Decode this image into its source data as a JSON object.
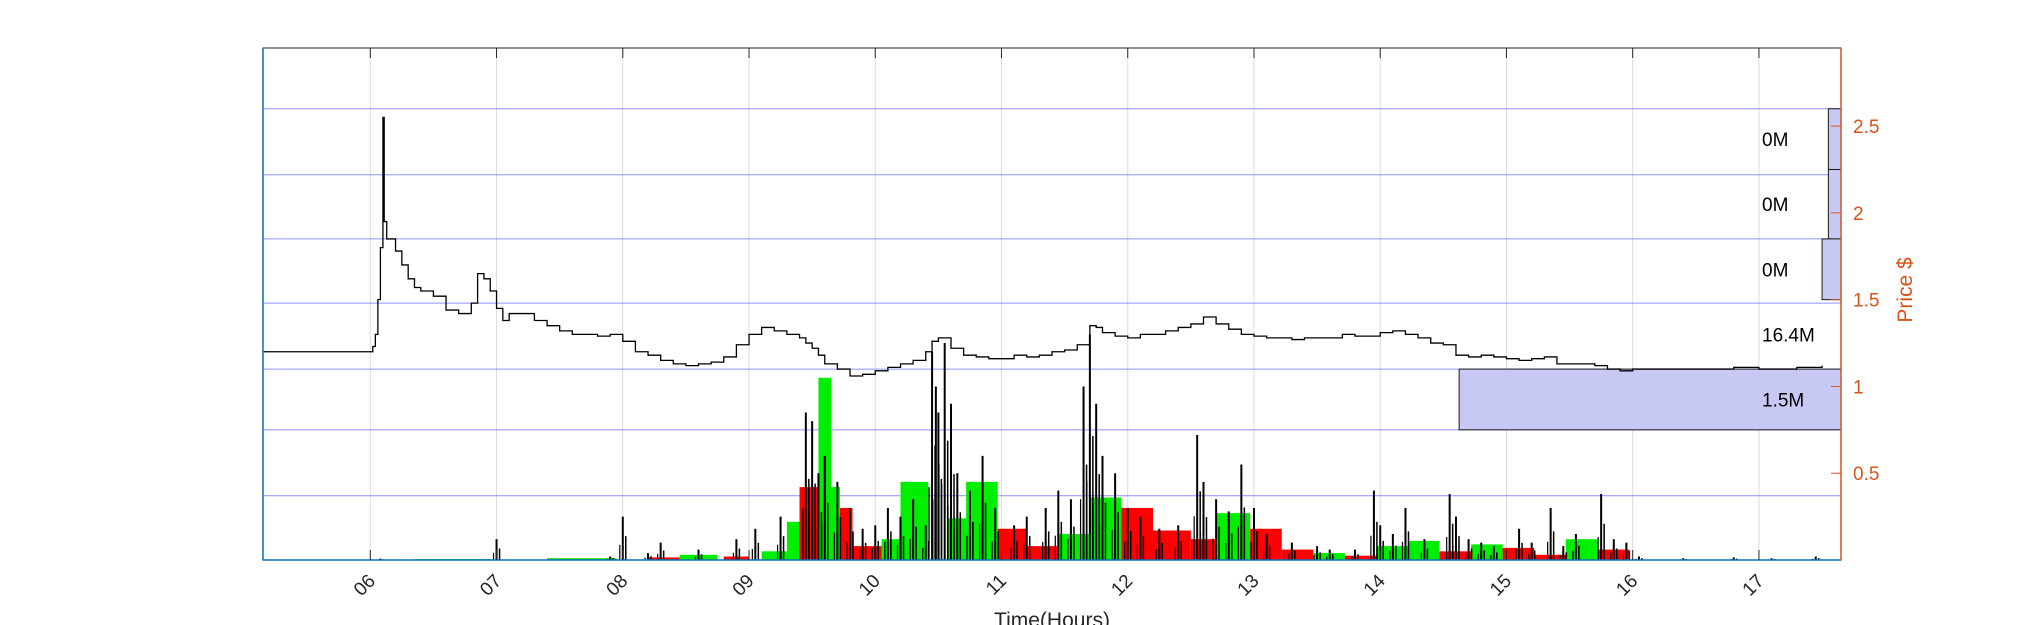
{
  "chart_data": {
    "type": "line",
    "xlabel": "Time(Hours)",
    "ylabel": "Price $",
    "x_ticks": [
      "06",
      "07",
      "08",
      "09",
      "10",
      "11",
      "12",
      "13",
      "14",
      "15",
      "16",
      "17"
    ],
    "y_ticks": [
      "0.5",
      "1",
      "1.5",
      "2",
      "2.5"
    ],
    "ylim": [
      0,
      2.95
    ],
    "xlim_hours": [
      5.15,
      17.65
    ],
    "grid": true,
    "series": [
      {
        "values": [
          [
            5.15,
            1.2
          ],
          [
            6.0,
            1.2
          ],
          [
            6.02,
            1.23
          ],
          [
            6.04,
            1.3
          ],
          [
            6.06,
            1.5
          ],
          [
            6.08,
            1.8
          ],
          [
            6.1,
            2.55
          ],
          [
            6.11,
            1.95
          ],
          [
            6.13,
            1.85
          ],
          [
            6.15,
            1.85
          ],
          [
            6.2,
            1.78
          ],
          [
            6.25,
            1.7
          ],
          [
            6.3,
            1.62
          ],
          [
            6.35,
            1.57
          ],
          [
            6.4,
            1.55
          ],
          [
            6.5,
            1.52
          ],
          [
            6.6,
            1.44
          ],
          [
            6.7,
            1.42
          ],
          [
            6.8,
            1.48
          ],
          [
            6.85,
            1.65
          ],
          [
            6.9,
            1.62
          ],
          [
            6.95,
            1.55
          ],
          [
            7.0,
            1.45
          ],
          [
            7.05,
            1.38
          ],
          [
            7.1,
            1.42
          ],
          [
            7.2,
            1.42
          ],
          [
            7.3,
            1.38
          ],
          [
            7.4,
            1.35
          ],
          [
            7.5,
            1.32
          ],
          [
            7.6,
            1.3
          ],
          [
            7.7,
            1.3
          ],
          [
            7.8,
            1.29
          ],
          [
            7.9,
            1.3
          ],
          [
            8.0,
            1.26
          ],
          [
            8.1,
            1.2
          ],
          [
            8.2,
            1.18
          ],
          [
            8.3,
            1.15
          ],
          [
            8.4,
            1.13
          ],
          [
            8.5,
            1.12
          ],
          [
            8.6,
            1.13
          ],
          [
            8.7,
            1.14
          ],
          [
            8.8,
            1.17
          ],
          [
            8.9,
            1.24
          ],
          [
            9.0,
            1.3
          ],
          [
            9.1,
            1.34
          ],
          [
            9.2,
            1.32
          ],
          [
            9.3,
            1.3
          ],
          [
            9.4,
            1.28
          ],
          [
            9.45,
            1.25
          ],
          [
            9.5,
            1.22
          ],
          [
            9.55,
            1.18
          ],
          [
            9.6,
            1.13
          ],
          [
            9.7,
            1.1
          ],
          [
            9.8,
            1.06
          ],
          [
            9.9,
            1.07
          ],
          [
            10.0,
            1.09
          ],
          [
            10.1,
            1.11
          ],
          [
            10.2,
            1.13
          ],
          [
            10.3,
            1.15
          ],
          [
            10.4,
            1.2
          ],
          [
            10.45,
            1.26
          ],
          [
            10.5,
            1.28
          ],
          [
            10.6,
            1.22
          ],
          [
            10.7,
            1.18
          ],
          [
            10.8,
            1.17
          ],
          [
            10.9,
            1.16
          ],
          [
            11.0,
            1.16
          ],
          [
            11.1,
            1.18
          ],
          [
            11.2,
            1.17
          ],
          [
            11.3,
            1.18
          ],
          [
            11.4,
            1.2
          ],
          [
            11.5,
            1.21
          ],
          [
            11.6,
            1.24
          ],
          [
            11.7,
            1.35
          ],
          [
            11.75,
            1.34
          ],
          [
            11.8,
            1.31
          ],
          [
            11.9,
            1.29
          ],
          [
            12.0,
            1.28
          ],
          [
            12.1,
            1.3
          ],
          [
            12.2,
            1.3
          ],
          [
            12.3,
            1.32
          ],
          [
            12.4,
            1.34
          ],
          [
            12.5,
            1.36
          ],
          [
            12.6,
            1.4
          ],
          [
            12.7,
            1.36
          ],
          [
            12.8,
            1.33
          ],
          [
            12.9,
            1.3
          ],
          [
            13.0,
            1.29
          ],
          [
            13.1,
            1.28
          ],
          [
            13.2,
            1.28
          ],
          [
            13.3,
            1.27
          ],
          [
            13.4,
            1.28
          ],
          [
            13.5,
            1.28
          ],
          [
            13.6,
            1.28
          ],
          [
            13.7,
            1.3
          ],
          [
            13.8,
            1.29
          ],
          [
            13.9,
            1.29
          ],
          [
            14.0,
            1.31
          ],
          [
            14.1,
            1.32
          ],
          [
            14.2,
            1.3
          ],
          [
            14.3,
            1.28
          ],
          [
            14.4,
            1.25
          ],
          [
            14.5,
            1.24
          ],
          [
            14.6,
            1.18
          ],
          [
            14.7,
            1.17
          ],
          [
            14.8,
            1.18
          ],
          [
            14.9,
            1.17
          ],
          [
            15.0,
            1.16
          ],
          [
            15.1,
            1.15
          ],
          [
            15.2,
            1.16
          ],
          [
            15.3,
            1.17
          ],
          [
            15.4,
            1.13
          ],
          [
            15.5,
            1.13
          ],
          [
            15.6,
            1.13
          ],
          [
            15.7,
            1.12
          ],
          [
            15.8,
            1.1
          ],
          [
            15.9,
            1.09
          ],
          [
            16.0,
            1.1
          ],
          [
            16.2,
            1.1
          ],
          [
            16.5,
            1.1
          ],
          [
            16.8,
            1.11
          ],
          [
            17.0,
            1.1
          ],
          [
            17.3,
            1.11
          ],
          [
            17.5,
            1.12
          ]
        ]
      }
    ],
    "volume_profile": [
      {
        "price_low": 2.25,
        "price_high": 2.6,
        "width": 0.008,
        "label": "0M"
      },
      {
        "price_low": 1.85,
        "price_high": 2.25,
        "width": 0.008,
        "label": "0M"
      },
      {
        "price_low": 1.5,
        "price_high": 1.85,
        "width": 0.012,
        "label": "0M"
      },
      {
        "price_low": 1.1,
        "price_high": 1.5,
        "width": 0.0,
        "label": "16.4M"
      },
      {
        "price_low": 0.75,
        "price_high": 1.1,
        "width": 0.242,
        "label": "1.5M"
      }
    ],
    "hourly_volume_bars": [
      {
        "x0": 6.35,
        "x1": 6.95,
        "price_top": 0.005,
        "color": "#00cc00"
      },
      {
        "x0": 7.4,
        "x1": 7.95,
        "price_top": 0.01,
        "color": "#00dd00"
      },
      {
        "x0": 8.2,
        "x1": 8.45,
        "price_top": 0.015,
        "color": "#ff0000"
      },
      {
        "x0": 8.45,
        "x1": 8.75,
        "price_top": 0.03,
        "color": "#00ee00"
      },
      {
        "x0": 8.8,
        "x1": 9.0,
        "price_top": 0.02,
        "color": "#ff0000"
      },
      {
        "x0": 9.1,
        "x1": 9.3,
        "price_top": 0.05,
        "color": "#00ee00"
      },
      {
        "x0": 9.3,
        "x1": 9.4,
        "price_top": 0.22,
        "color": "#00ee00"
      },
      {
        "x0": 9.4,
        "x1": 9.55,
        "price_top": 0.42,
        "color": "#ff0000"
      },
      {
        "x0": 9.55,
        "x1": 9.65,
        "price_top": 1.05,
        "color": "#00ee00"
      },
      {
        "x0": 9.62,
        "x1": 9.72,
        "price_top": 0.42,
        "color": "#00ee00"
      },
      {
        "x0": 9.72,
        "x1": 9.82,
        "price_top": 0.3,
        "color": "#ff0000"
      },
      {
        "x0": 9.82,
        "x1": 10.05,
        "price_top": 0.08,
        "color": "#ff0000"
      },
      {
        "x0": 10.05,
        "x1": 10.2,
        "price_top": 0.12,
        "color": "#00ee00"
      },
      {
        "x0": 10.2,
        "x1": 10.42,
        "price_top": 0.45,
        "color": "#00ee00"
      },
      {
        "x0": 10.58,
        "x1": 10.72,
        "price_top": 0.24,
        "color": "#00ee00"
      },
      {
        "x0": 10.72,
        "x1": 10.97,
        "price_top": 0.45,
        "color": "#00ee00"
      },
      {
        "x0": 10.97,
        "x1": 11.2,
        "price_top": 0.18,
        "color": "#ff0000"
      },
      {
        "x0": 11.2,
        "x1": 11.45,
        "price_top": 0.08,
        "color": "#ff0000"
      },
      {
        "x0": 11.45,
        "x1": 11.7,
        "price_top": 0.15,
        "color": "#00ee00"
      },
      {
        "x0": 11.7,
        "x1": 11.95,
        "price_top": 0.36,
        "color": "#00ee00"
      },
      {
        "x0": 11.95,
        "x1": 12.2,
        "price_top": 0.3,
        "color": "#ff0000"
      },
      {
        "x0": 12.2,
        "x1": 12.5,
        "price_top": 0.17,
        "color": "#ff0000"
      },
      {
        "x0": 12.5,
        "x1": 12.7,
        "price_top": 0.12,
        "color": "#ff0000"
      },
      {
        "x0": 12.7,
        "x1": 12.97,
        "price_top": 0.27,
        "color": "#00ee00"
      },
      {
        "x0": 12.97,
        "x1": 13.22,
        "price_top": 0.18,
        "color": "#ff0000"
      },
      {
        "x0": 13.22,
        "x1": 13.47,
        "price_top": 0.06,
        "color": "#ff0000"
      },
      {
        "x0": 13.47,
        "x1": 13.72,
        "price_top": 0.04,
        "color": "#00ee00"
      },
      {
        "x0": 13.72,
        "x1": 13.97,
        "price_top": 0.025,
        "color": "#ff0000"
      },
      {
        "x0": 13.97,
        "x1": 14.22,
        "price_top": 0.08,
        "color": "#00ee00"
      },
      {
        "x0": 14.22,
        "x1": 14.47,
        "price_top": 0.11,
        "color": "#00ee00"
      },
      {
        "x0": 14.47,
        "x1": 14.72,
        "price_top": 0.05,
        "color": "#ff0000"
      },
      {
        "x0": 14.72,
        "x1": 14.97,
        "price_top": 0.09,
        "color": "#00ee00"
      },
      {
        "x0": 14.97,
        "x1": 15.22,
        "price_top": 0.07,
        "color": "#ff0000"
      },
      {
        "x0": 15.22,
        "x1": 15.47,
        "price_top": 0.03,
        "color": "#ff0000"
      },
      {
        "x0": 15.47,
        "x1": 15.72,
        "price_top": 0.12,
        "color": "#00ee00"
      },
      {
        "x0": 15.72,
        "x1": 15.97,
        "price_top": 0.06,
        "color": "#ff0000"
      }
    ],
    "trade_spikes": [
      [
        6.08,
        0.008
      ],
      [
        7.0,
        0.12
      ],
      [
        7.9,
        0.02
      ],
      [
        8.0,
        0.25
      ],
      [
        8.2,
        0.04
      ],
      [
        8.3,
        0.1
      ],
      [
        8.6,
        0.06
      ],
      [
        8.9,
        0.12
      ],
      [
        9.05,
        0.18
      ],
      [
        9.25,
        0.25
      ],
      [
        9.45,
        0.85
      ],
      [
        9.5,
        0.8
      ],
      [
        9.55,
        0.5
      ],
      [
        9.6,
        0.6
      ],
      [
        9.7,
        0.45
      ],
      [
        9.8,
        0.3
      ],
      [
        9.9,
        0.18
      ],
      [
        10.0,
        0.2
      ],
      [
        10.1,
        0.3
      ],
      [
        10.2,
        0.25
      ],
      [
        10.3,
        0.35
      ],
      [
        10.4,
        0.2
      ],
      [
        10.45,
        1.2
      ],
      [
        10.48,
        1.0
      ],
      [
        10.5,
        0.85
      ],
      [
        10.55,
        1.25
      ],
      [
        10.6,
        0.9
      ],
      [
        10.65,
        0.5
      ],
      [
        10.75,
        0.4
      ],
      [
        10.85,
        0.6
      ],
      [
        10.95,
        0.3
      ],
      [
        11.1,
        0.2
      ],
      [
        11.2,
        0.25
      ],
      [
        11.35,
        0.3
      ],
      [
        11.45,
        0.4
      ],
      [
        11.55,
        0.35
      ],
      [
        11.65,
        1.0
      ],
      [
        11.7,
        1.3
      ],
      [
        11.75,
        0.9
      ],
      [
        11.8,
        0.6
      ],
      [
        11.9,
        0.5
      ],
      [
        12.0,
        0.3
      ],
      [
        12.1,
        0.25
      ],
      [
        12.25,
        0.18
      ],
      [
        12.4,
        0.2
      ],
      [
        12.55,
        0.72
      ],
      [
        12.6,
        0.45
      ],
      [
        12.7,
        0.35
      ],
      [
        12.8,
        0.28
      ],
      [
        12.9,
        0.55
      ],
      [
        13.0,
        0.3
      ],
      [
        13.1,
        0.15
      ],
      [
        13.3,
        0.1
      ],
      [
        13.5,
        0.08
      ],
      [
        13.6,
        0.06
      ],
      [
        13.8,
        0.06
      ],
      [
        13.95,
        0.4
      ],
      [
        14.0,
        0.2
      ],
      [
        14.1,
        0.15
      ],
      [
        14.2,
        0.3
      ],
      [
        14.35,
        0.12
      ],
      [
        14.55,
        0.38
      ],
      [
        14.6,
        0.25
      ],
      [
        14.7,
        0.12
      ],
      [
        14.8,
        0.1
      ],
      [
        14.9,
        0.08
      ],
      [
        15.1,
        0.18
      ],
      [
        15.2,
        0.1
      ],
      [
        15.35,
        0.3
      ],
      [
        15.45,
        0.08
      ],
      [
        15.55,
        0.15
      ],
      [
        15.75,
        0.38
      ],
      [
        15.85,
        0.12
      ],
      [
        15.95,
        0.1
      ],
      [
        16.05,
        0.02
      ],
      [
        16.4,
        0.01
      ],
      [
        16.8,
        0.015
      ],
      [
        17.1,
        0.01
      ],
      [
        17.45,
        0.02
      ]
    ]
  }
}
